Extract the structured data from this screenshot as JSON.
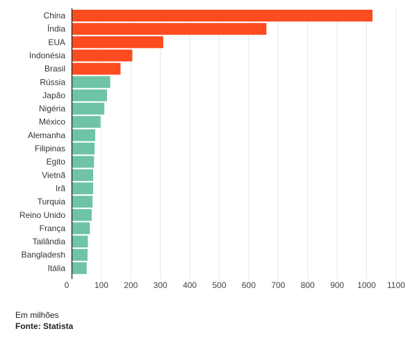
{
  "chart_data": {
    "type": "bar",
    "orientation": "horizontal",
    "categories": [
      "China",
      "Índia",
      "EUA",
      "Indonésia",
      "Brasil",
      "Rússia",
      "Japão",
      "Nigéria",
      "México",
      "Alemanha",
      "Filipinas",
      "Egito",
      "Vietnã",
      "Irã",
      "Turquia",
      "Reino Unido",
      "França",
      "Tailândia",
      "Bangladesh",
      "Itália"
    ],
    "values": [
      1020,
      660,
      310,
      205,
      165,
      130,
      119,
      110,
      97,
      79,
      77,
      75,
      72,
      72,
      70,
      67,
      61,
      54,
      53,
      50
    ],
    "highlight_count": 5,
    "colors": {
      "highlight": "#fc4c20",
      "default": "#6ec4a5",
      "grid": "#e6e6e6",
      "axis": "#333333"
    },
    "xlim": [
      0,
      1100
    ],
    "xticks": [
      0,
      100,
      200,
      300,
      400,
      500,
      600,
      700,
      800,
      900,
      1000,
      1100
    ],
    "grid": true
  },
  "footer": {
    "unit_note": "Em milhões",
    "source": "Fonte: Statista"
  }
}
